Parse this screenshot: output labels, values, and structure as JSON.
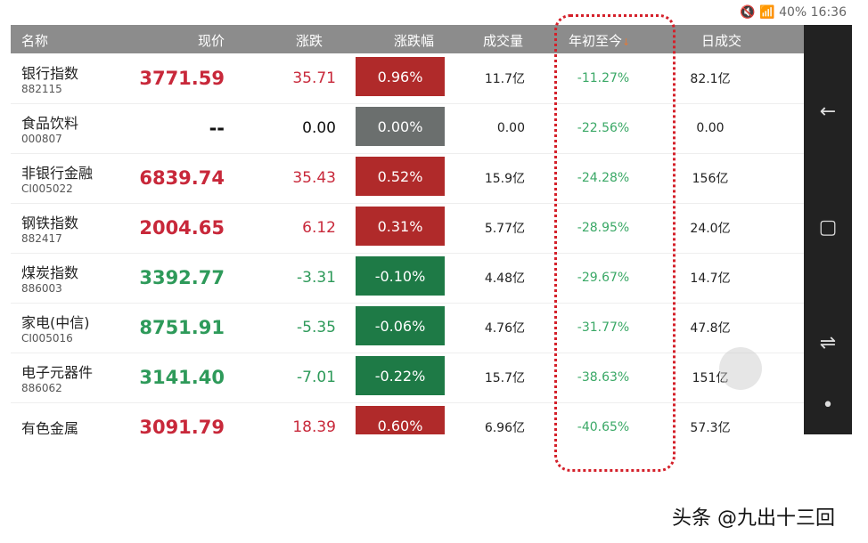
{
  "status": {
    "battery": "40%",
    "time": "16:36"
  },
  "headers": [
    "名称",
    "现价",
    "涨跌",
    "涨跌幅",
    "成交量",
    "年初至今",
    "日成交"
  ],
  "sort_arrow": "↓",
  "colors": {
    "up": "#c8283a",
    "down": "#2e9a5a",
    "up_badge": "#b02a2a",
    "down_badge": "#1e7a46",
    "flat_badge": "#6b6f6e",
    "ytd": "#3aa866",
    "highlight": "#d4202a"
  },
  "rows": [
    {
      "name": "银行指数",
      "code": "882115",
      "price": "3771.59",
      "change": "35.71",
      "pct": "0.96%",
      "vol": "11.7亿",
      "ytd": "-11.27%",
      "day": "82.1亿",
      "trend": "up"
    },
    {
      "name": "食品饮料",
      "code": "000807",
      "price": "--",
      "change": "0.00",
      "pct": "0.00%",
      "vol": "0.00",
      "ytd": "-22.56%",
      "day": "0.00",
      "trend": "flat"
    },
    {
      "name": "非银行金融",
      "code": "CI005022",
      "price": "6839.74",
      "change": "35.43",
      "pct": "0.52%",
      "vol": "15.9亿",
      "ytd": "-24.28%",
      "day": "156亿",
      "trend": "up"
    },
    {
      "name": "钢铁指数",
      "code": "882417",
      "price": "2004.65",
      "change": "6.12",
      "pct": "0.31%",
      "vol": "5.77亿",
      "ytd": "-28.95%",
      "day": "24.0亿",
      "trend": "up"
    },
    {
      "name": "煤炭指数",
      "code": "886003",
      "price": "3392.77",
      "change": "-3.31",
      "pct": "-0.10%",
      "vol": "4.48亿",
      "ytd": "-29.67%",
      "day": "14.7亿",
      "trend": "down"
    },
    {
      "name": "家电(中信)",
      "code": "CI005016",
      "price": "8751.91",
      "change": "-5.35",
      "pct": "-0.06%",
      "vol": "4.76亿",
      "ytd": "-31.77%",
      "day": "47.8亿",
      "trend": "down"
    },
    {
      "name": "电子元器件",
      "code": "886062",
      "price": "3141.40",
      "change": "-7.01",
      "pct": "-0.22%",
      "vol": "15.7亿",
      "ytd": "-38.63%",
      "day": "151亿",
      "trend": "down"
    },
    {
      "name": "有色金属",
      "code": "",
      "price": "3091.79",
      "change": "18.39",
      "pct": "0.60%",
      "vol": "6.96亿",
      "ytd": "-40.65%",
      "day": "57.3亿",
      "trend": "up"
    }
  ],
  "nav": {
    "back": "←",
    "recent": "▢",
    "switch": "⇌",
    "dot": "•"
  },
  "watermark": "头条 @九出十三回"
}
